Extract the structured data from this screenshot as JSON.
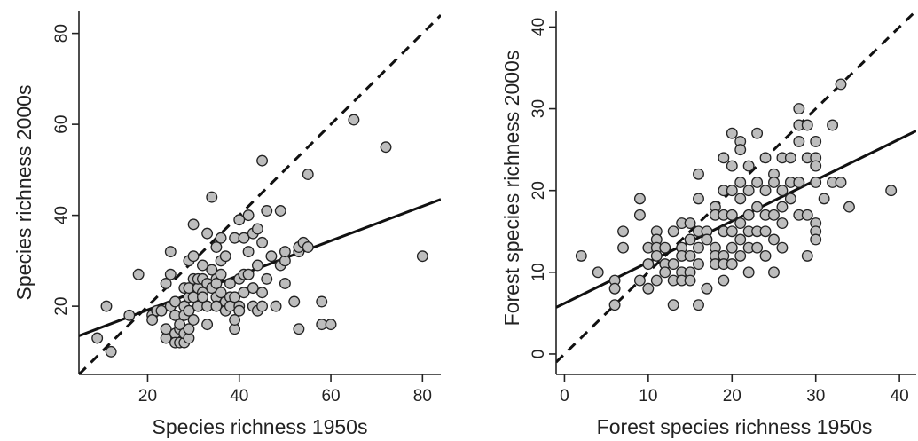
{
  "chart_data": [
    {
      "type": "scatter",
      "xlabel": "Species richness 1950s",
      "ylabel": "Species richness 2000s",
      "xlim": [
        5,
        84
      ],
      "ylim": [
        5,
        85
      ],
      "xticks": [
        20,
        40,
        60,
        80
      ],
      "yticks": [
        20,
        40,
        60,
        80
      ],
      "grid": false,
      "points": [
        [
          9,
          13
        ],
        [
          11,
          20
        ],
        [
          12,
          10
        ],
        [
          16,
          18
        ],
        [
          18,
          27
        ],
        [
          21,
          18
        ],
        [
          21,
          17
        ],
        [
          22,
          19
        ],
        [
          23,
          19
        ],
        [
          24,
          13
        ],
        [
          24,
          15
        ],
        [
          24,
          25
        ],
        [
          25,
          32
        ],
        [
          25,
          27
        ],
        [
          25,
          20
        ],
        [
          26,
          21
        ],
        [
          26,
          18
        ],
        [
          26,
          14
        ],
        [
          26,
          12
        ],
        [
          27,
          15
        ],
        [
          27,
          12
        ],
        [
          27,
          16
        ],
        [
          28,
          12
        ],
        [
          28,
          14
        ],
        [
          28,
          20
        ],
        [
          28,
          24
        ],
        [
          28,
          18
        ],
        [
          29,
          13
        ],
        [
          29,
          15
        ],
        [
          29,
          22
        ],
        [
          29,
          30
        ],
        [
          29,
          24
        ],
        [
          29,
          19
        ],
        [
          30,
          17
        ],
        [
          30,
          22
        ],
        [
          30,
          38
        ],
        [
          30,
          31
        ],
        [
          30,
          26
        ],
        [
          31,
          24
        ],
        [
          31,
          20
        ],
        [
          31,
          26
        ],
        [
          32,
          23
        ],
        [
          32,
          26
        ],
        [
          32,
          29
        ],
        [
          32,
          22
        ],
        [
          33,
          25
        ],
        [
          33,
          20
        ],
        [
          33,
          16
        ],
        [
          33,
          36
        ],
        [
          34,
          24
        ],
        [
          34,
          28
        ],
        [
          34,
          44
        ],
        [
          35,
          26
        ],
        [
          35,
          33
        ],
        [
          35,
          22
        ],
        [
          35,
          20
        ],
        [
          35,
          25
        ],
        [
          36,
          27
        ],
        [
          36,
          23
        ],
        [
          36,
          30
        ],
        [
          36,
          35
        ],
        [
          37,
          31
        ],
        [
          37,
          21
        ],
        [
          37,
          19
        ],
        [
          38,
          22
        ],
        [
          38,
          20
        ],
        [
          38,
          25
        ],
        [
          39,
          15
        ],
        [
          39,
          35
        ],
        [
          39,
          17
        ],
        [
          39,
          22
        ],
        [
          40,
          20
        ],
        [
          40,
          19
        ],
        [
          40,
          26
        ],
        [
          40,
          39
        ],
        [
          41,
          27
        ],
        [
          41,
          23
        ],
        [
          41,
          35
        ],
        [
          42,
          40
        ],
        [
          42,
          32
        ],
        [
          42,
          27
        ],
        [
          43,
          24
        ],
        [
          43,
          20
        ],
        [
          43,
          36
        ],
        [
          44,
          37
        ],
        [
          44,
          19
        ],
        [
          44,
          29
        ],
        [
          45,
          52
        ],
        [
          45,
          23
        ],
        [
          45,
          20
        ],
        [
          45,
          34
        ],
        [
          46,
          41
        ],
        [
          46,
          26
        ],
        [
          47,
          31
        ],
        [
          48,
          20
        ],
        [
          49,
          29
        ],
        [
          49,
          41
        ],
        [
          50,
          25
        ],
        [
          50,
          30
        ],
        [
          50,
          32
        ],
        [
          52,
          21
        ],
        [
          53,
          15
        ],
        [
          53,
          32
        ],
        [
          53,
          33
        ],
        [
          54,
          34
        ],
        [
          55,
          49
        ],
        [
          55,
          33
        ],
        [
          58,
          21
        ],
        [
          58,
          16
        ],
        [
          60,
          16
        ],
        [
          65,
          61
        ],
        [
          72,
          55
        ],
        [
          80,
          31
        ]
      ],
      "fit_line": {
        "x": [
          5,
          84
        ],
        "y": [
          13.5,
          43.5
        ]
      },
      "one_to_one": {
        "x": [
          5,
          84
        ],
        "y": [
          5,
          84
        ]
      }
    },
    {
      "type": "scatter",
      "xlabel": "Forest species richness 1950s",
      "ylabel": "Forest species richness 2000s",
      "xlim": [
        -1,
        42
      ],
      "ylim": [
        -2.5,
        42
      ],
      "xticks": [
        0,
        10,
        20,
        30,
        40
      ],
      "yticks": [
        0,
        10,
        20,
        30,
        40
      ],
      "grid": false,
      "points": [
        [
          2,
          12
        ],
        [
          4,
          10
        ],
        [
          6,
          6
        ],
        [
          6,
          9
        ],
        [
          6,
          8
        ],
        [
          7,
          15
        ],
        [
          7,
          13
        ],
        [
          9,
          19
        ],
        [
          9,
          17
        ],
        [
          9,
          9
        ],
        [
          10,
          8
        ],
        [
          10,
          11
        ],
        [
          10,
          13
        ],
        [
          11,
          15
        ],
        [
          11,
          14
        ],
        [
          11,
          13
        ],
        [
          11,
          12
        ],
        [
          11,
          9
        ],
        [
          12,
          13
        ],
        [
          12,
          11
        ],
        [
          12,
          10
        ],
        [
          13,
          6
        ],
        [
          13,
          9
        ],
        [
          13,
          11
        ],
        [
          13,
          15
        ],
        [
          14,
          16
        ],
        [
          14,
          10
        ],
        [
          14,
          9
        ],
        [
          14,
          13
        ],
        [
          14,
          12
        ],
        [
          15,
          16
        ],
        [
          15,
          14
        ],
        [
          15,
          12
        ],
        [
          15,
          10
        ],
        [
          15,
          9
        ],
        [
          16,
          22
        ],
        [
          16,
          19
        ],
        [
          16,
          15
        ],
        [
          16,
          13
        ],
        [
          16,
          11
        ],
        [
          16,
          6
        ],
        [
          17,
          15
        ],
        [
          17,
          14
        ],
        [
          17,
          8
        ],
        [
          18,
          18
        ],
        [
          18,
          17
        ],
        [
          18,
          13
        ],
        [
          18,
          12
        ],
        [
          18,
          11
        ],
        [
          19,
          24
        ],
        [
          19,
          20
        ],
        [
          19,
          17
        ],
        [
          19,
          15
        ],
        [
          19,
          12
        ],
        [
          19,
          11
        ],
        [
          19,
          9
        ],
        [
          20,
          27
        ],
        [
          20,
          23
        ],
        [
          20,
          20
        ],
        [
          20,
          17
        ],
        [
          20,
          15
        ],
        [
          20,
          13
        ],
        [
          20,
          11
        ],
        [
          21,
          26
        ],
        [
          21,
          25
        ],
        [
          21,
          21
        ],
        [
          21,
          19
        ],
        [
          21,
          16
        ],
        [
          21,
          14
        ],
        [
          21,
          12
        ],
        [
          22,
          23
        ],
        [
          22,
          20
        ],
        [
          22,
          17
        ],
        [
          22,
          15
        ],
        [
          22,
          13
        ],
        [
          22,
          10
        ],
        [
          23,
          27
        ],
        [
          23,
          21
        ],
        [
          23,
          18
        ],
        [
          23,
          15
        ],
        [
          23,
          13
        ],
        [
          24,
          24
        ],
        [
          24,
          20
        ],
        [
          24,
          17
        ],
        [
          24,
          15
        ],
        [
          24,
          12
        ],
        [
          25,
          22
        ],
        [
          25,
          21
        ],
        [
          25,
          17
        ],
        [
          25,
          14
        ],
        [
          25,
          10
        ],
        [
          26,
          24
        ],
        [
          26,
          20
        ],
        [
          26,
          18
        ],
        [
          26,
          16
        ],
        [
          26,
          13
        ],
        [
          27,
          24
        ],
        [
          27,
          21
        ],
        [
          27,
          19
        ],
        [
          28,
          30
        ],
        [
          28,
          28
        ],
        [
          28,
          26
        ],
        [
          28,
          21
        ],
        [
          28,
          17
        ],
        [
          29,
          28
        ],
        [
          29,
          24
        ],
        [
          29,
          17
        ],
        [
          29,
          12
        ],
        [
          30,
          26
        ],
        [
          30,
          24
        ],
        [
          30,
          23
        ],
        [
          30,
          21
        ],
        [
          30,
          16
        ],
        [
          30,
          15
        ],
        [
          30,
          14
        ],
        [
          31,
          19
        ],
        [
          32,
          28
        ],
        [
          32,
          21
        ],
        [
          33,
          33
        ],
        [
          33,
          21
        ],
        [
          34,
          18
        ],
        [
          39,
          20
        ]
      ],
      "fit_line": {
        "x": [
          -1,
          42
        ],
        "y": [
          5.7,
          27.3
        ]
      },
      "one_to_one": {
        "x": [
          -1,
          42
        ],
        "y": [
          -1,
          42
        ]
      }
    }
  ]
}
